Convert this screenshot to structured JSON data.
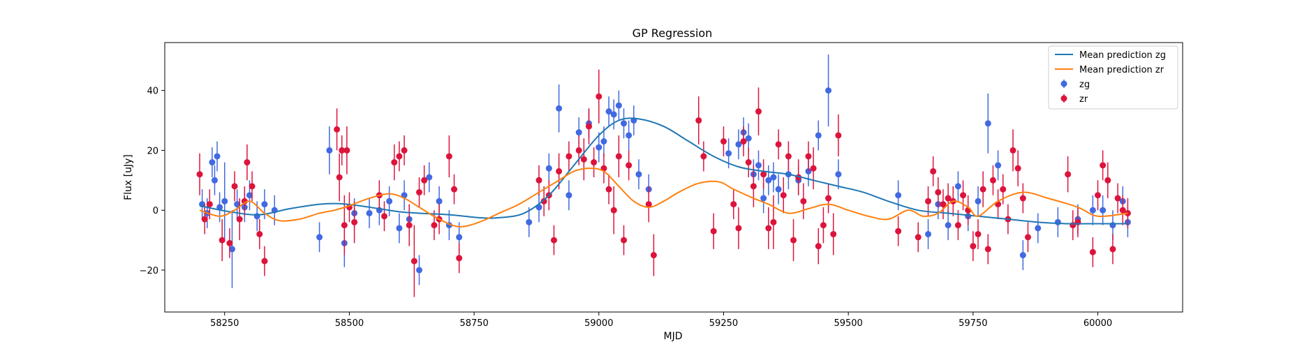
{
  "chart_data": {
    "type": "scatter",
    "title": "GP Regression",
    "xlabel": "MJD",
    "ylabel": "Flux [uJy]",
    "xlim": [
      58130,
      60170
    ],
    "ylim": [
      -34,
      56
    ],
    "xticks": [
      58250,
      58500,
      58750,
      59000,
      59250,
      59500,
      59750,
      60000
    ],
    "yticks": [
      -20,
      0,
      20,
      40
    ],
    "grid": false,
    "legend_position": "top-right",
    "series": [
      {
        "name": "Mean prediction zg",
        "kind": "line",
        "color": "#1f77b4",
        "x": [
          58200,
          58260,
          58320,
          58380,
          58440,
          58480,
          58520,
          58560,
          58600,
          58640,
          58700,
          58760,
          58800,
          58850,
          58900,
          58950,
          59000,
          59040,
          59080,
          59130,
          59180,
          59230,
          59280,
          59330,
          59380,
          59430,
          59480,
          59530,
          59580,
          59640,
          59700,
          59760,
          59820,
          59880,
          59940,
          60000,
          60060
        ],
        "values": [
          1.5,
          -0.5,
          -1.5,
          0.5,
          2,
          2.2,
          1.5,
          0.5,
          -0.5,
          -1,
          -1.5,
          -2.5,
          -2.5,
          -1,
          5,
          15,
          25,
          30,
          30.5,
          28,
          23,
          18,
          14.5,
          13,
          12,
          10,
          8,
          6,
          3,
          0,
          -1,
          -2,
          -3,
          -4,
          -4.5,
          -4.5,
          -4.5
        ]
      },
      {
        "name": "Mean prediction zr",
        "kind": "line",
        "color": "#ff7f0e",
        "x": [
          58200,
          58240,
          58270,
          58300,
          58330,
          58360,
          58400,
          58440,
          58470,
          58500,
          58540,
          58580,
          58610,
          58640,
          58680,
          58720,
          58760,
          58800,
          58840,
          58880,
          58920,
          58950,
          58980,
          59010,
          59040,
          59070,
          59100,
          59130,
          59160,
          59200,
          59240,
          59270,
          59310,
          59340,
          59380,
          59420,
          59460,
          59500,
          59540,
          59580,
          59620,
          59650,
          59680,
          59710,
          59740,
          59760,
          59800,
          59850,
          59900,
          59960,
          60000,
          60060
        ],
        "values": [
          0,
          -2,
          0,
          3,
          -1,
          -3.5,
          -3,
          -1,
          0,
          1.5,
          4,
          5.5,
          4,
          1,
          -3,
          -5.5,
          -4,
          -1,
          2,
          6,
          10,
          13,
          14,
          13,
          8,
          3,
          1,
          3,
          6,
          9,
          9.5,
          7,
          4,
          2,
          -1,
          0.5,
          2,
          0,
          -2,
          -3,
          0,
          -2,
          -1,
          3,
          1,
          -2,
          3,
          6,
          4,
          1,
          -2,
          -1
        ]
      },
      {
        "name": "zg",
        "kind": "errorbar",
        "color": "#4169e1",
        "x": [
          58205,
          58215,
          58225,
          58230,
          58235,
          58240,
          58250,
          58265,
          58275,
          58290,
          58300,
          58315,
          58330,
          58350,
          58440,
          58460,
          58490,
          58510,
          58540,
          58560,
          58580,
          58600,
          58610,
          58620,
          58640,
          58660,
          58680,
          58700,
          58720,
          58860,
          58880,
          58900,
          58920,
          58940,
          58960,
          58980,
          59000,
          59010,
          59020,
          59030,
          59040,
          59050,
          59060,
          59070,
          59080,
          59100,
          59260,
          59280,
          59290,
          59300,
          59310,
          59320,
          59330,
          59340,
          59350,
          59360,
          59380,
          59400,
          59420,
          59440,
          59460,
          59480,
          59600,
          59660,
          59680,
          59700,
          59720,
          59740,
          59760,
          59780,
          59800,
          59850,
          59880,
          59920,
          59960,
          59990,
          60010,
          60030,
          60050,
          60060
        ],
        "y": [
          2,
          -1,
          16,
          10,
          18,
          1,
          3,
          -13,
          2,
          1,
          5,
          -2,
          2,
          0,
          -9,
          20,
          -11,
          -1,
          -1,
          0,
          3,
          -6,
          5,
          -3,
          -20,
          11,
          3,
          -5,
          -9,
          -4,
          1,
          14,
          34,
          5,
          26,
          29,
          21,
          23,
          33,
          32,
          35,
          29,
          25,
          30,
          12,
          7,
          19,
          22,
          26,
          24,
          12,
          15,
          4,
          10,
          11,
          7,
          12,
          10,
          13,
          25,
          40,
          12,
          5,
          -8,
          2,
          -5,
          8,
          -2,
          3,
          29,
          15,
          -15,
          -6,
          -4,
          -3,
          0,
          0,
          -5,
          3,
          -4
        ],
        "err": [
          5,
          5,
          5,
          5,
          5,
          5,
          13,
          13,
          5,
          5,
          5,
          5,
          5,
          5,
          5,
          8,
          8,
          5,
          5,
          5,
          5,
          5,
          5,
          5,
          5,
          5,
          5,
          5,
          5,
          5,
          5,
          5,
          8,
          5,
          5,
          5,
          5,
          5,
          5,
          5,
          5,
          5,
          5,
          5,
          5,
          5,
          5,
          5,
          5,
          5,
          5,
          5,
          5,
          5,
          5,
          5,
          5,
          5,
          5,
          5,
          12,
          5,
          5,
          5,
          5,
          5,
          5,
          5,
          5,
          10,
          5,
          5,
          5,
          5,
          5,
          5,
          5,
          5,
          5,
          5
        ]
      },
      {
        "name": "zr",
        "kind": "errorbar",
        "color": "#dc143c",
        "x": [
          58200,
          58210,
          58220,
          58245,
          58260,
          58270,
          58280,
          58290,
          58295,
          58305,
          58320,
          58330,
          58475,
          58480,
          58485,
          58490,
          58495,
          58500,
          58510,
          58560,
          58570,
          58590,
          58600,
          58610,
          58620,
          58630,
          58640,
          58650,
          58670,
          58680,
          58700,
          58710,
          58720,
          58880,
          58890,
          58900,
          58910,
          58920,
          58940,
          58960,
          58970,
          58980,
          58990,
          59000,
          59010,
          59020,
          59030,
          59040,
          59050,
          59060,
          59100,
          59110,
          59200,
          59210,
          59230,
          59250,
          59270,
          59280,
          59290,
          59300,
          59310,
          59320,
          59330,
          59340,
          59350,
          59360,
          59370,
          59380,
          59390,
          59400,
          59410,
          59420,
          59430,
          59440,
          59450,
          59460,
          59470,
          59480,
          59600,
          59640,
          59660,
          59670,
          59680,
          59690,
          59700,
          59710,
          59720,
          59730,
          59740,
          59750,
          59760,
          59770,
          59780,
          59790,
          59800,
          59810,
          59820,
          59830,
          59840,
          59850,
          59860,
          59940,
          59950,
          59960,
          59990,
          60000,
          60010,
          60020,
          60030,
          60040,
          60050,
          60060
        ],
        "y": [
          12,
          -3,
          2,
          -10,
          -11,
          8,
          -3,
          3,
          16,
          8,
          -8,
          -17,
          27,
          11,
          20,
          -5,
          20,
          1,
          -4,
          5,
          -2,
          16,
          18,
          20,
          -5,
          -17,
          6,
          10,
          -5,
          -3,
          18,
          7,
          -16,
          10,
          3,
          5,
          -10,
          13,
          18,
          20,
          17,
          28,
          16,
          38,
          14,
          7,
          0,
          18,
          -10,
          15,
          2,
          -15,
          30,
          18,
          -7,
          23,
          2,
          -6,
          23,
          16,
          8,
          33,
          12,
          -6,
          -4,
          22,
          5,
          18,
          -10,
          11,
          3,
          18,
          14,
          -12,
          -5,
          4,
          -8,
          25,
          -7,
          -9,
          3,
          13,
          6,
          2,
          4,
          3,
          -5,
          5,
          0,
          -12,
          -8,
          7,
          -13,
          10,
          2,
          7,
          -3,
          20,
          14,
          4,
          -9,
          12,
          -5,
          -4,
          -14,
          5,
          15,
          10,
          -13,
          4,
          0,
          -1
        ],
        "err": [
          7,
          5,
          5,
          7,
          5,
          5,
          7,
          5,
          6,
          5,
          5,
          5,
          7,
          8,
          5,
          10,
          8,
          5,
          7,
          5,
          5,
          6,
          5,
          5,
          7,
          12,
          5,
          5,
          5,
          5,
          7,
          5,
          5,
          5,
          5,
          5,
          5,
          6,
          5,
          5,
          7,
          6,
          5,
          9,
          5,
          5,
          8,
          7,
          5,
          5,
          6,
          7,
          8,
          5,
          6,
          5,
          5,
          7,
          5,
          5,
          7,
          8,
          5,
          7,
          9,
          5,
          6,
          5,
          7,
          6,
          6,
          5,
          7,
          6,
          6,
          5,
          7,
          7,
          5,
          5,
          5,
          5,
          5,
          5,
          5,
          5,
          5,
          5,
          5,
          5,
          5,
          6,
          5,
          5,
          5,
          5,
          5,
          7,
          6,
          5,
          5,
          6,
          5,
          5,
          5,
          5,
          5,
          6,
          5,
          5,
          5,
          5
        ]
      }
    ]
  }
}
